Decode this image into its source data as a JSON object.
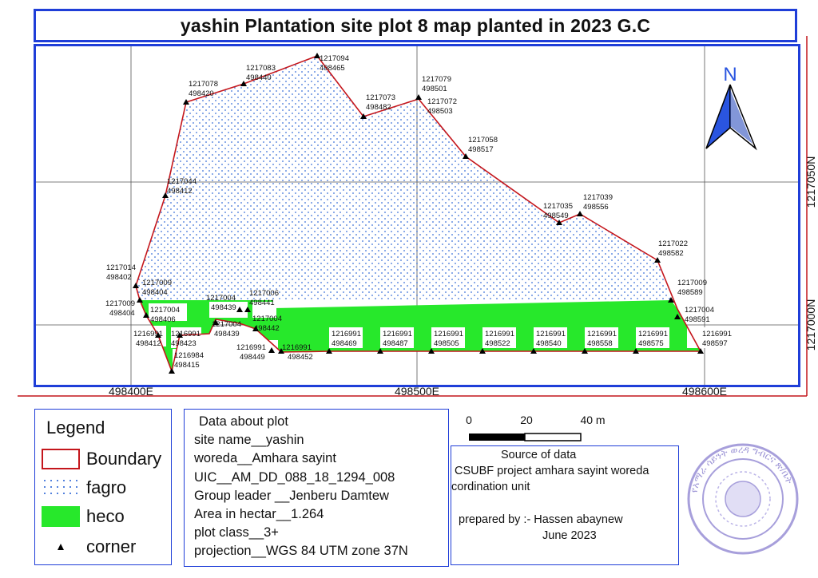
{
  "title": "yashin Plantation site plot 8 map planted in 2023 G.C",
  "colors": {
    "frame": "#1f3ed8",
    "boundary": "#c4161c",
    "fagro_dots": "#3a6fd8",
    "heco": "#27e82b",
    "north_arrow": "#2a55e0"
  },
  "map": {
    "north_label": "N",
    "grid_x_labels": [
      "498400E",
      "498500E",
      "498600E"
    ],
    "grid_y_labels": [
      "1217050N",
      "1217000N"
    ],
    "corners": [
      {
        "n": "1217094",
        "e": "498465"
      },
      {
        "n": "1217083",
        "e": "498440"
      },
      {
        "n": "1217078",
        "e": "498420"
      },
      {
        "n": "1217073",
        "e": "498482"
      },
      {
        "n": "1217079",
        "e": "498501"
      },
      {
        "n": "1217072",
        "e": "498503"
      },
      {
        "n": "1217058",
        "e": "498517"
      },
      {
        "n": "1217044",
        "e": "498412"
      },
      {
        "n": "1217035",
        "e": "498549"
      },
      {
        "n": "1217039",
        "e": "498556"
      },
      {
        "n": "1217022",
        "e": "498582"
      },
      {
        "n": "1217014",
        "e": "498402"
      },
      {
        "n": "1217009",
        "e": "498404"
      },
      {
        "n": "1217009",
        "e": "498589"
      },
      {
        "n": "1217009",
        "e": "498404"
      },
      {
        "n": "1217004",
        "e": "498406"
      },
      {
        "n": "1217004",
        "e": "498439"
      },
      {
        "n": "1217006",
        "e": "498441"
      },
      {
        "n": "1217004",
        "e": "498591"
      },
      {
        "n": "1217004",
        "e": "498439"
      },
      {
        "n": "1217004",
        "e": "498442"
      },
      {
        "n": "1216991",
        "e": "498412"
      },
      {
        "n": "1216991",
        "e": "498423"
      },
      {
        "n": "1216984",
        "e": "498415"
      },
      {
        "n": "1216991",
        "e": "498449"
      },
      {
        "n": "1216991",
        "e": "498452"
      },
      {
        "n": "1216991",
        "e": "498469"
      },
      {
        "n": "1216991",
        "e": "498487"
      },
      {
        "n": "1216991",
        "e": "498505"
      },
      {
        "n": "1216991",
        "e": "498522"
      },
      {
        "n": "1216991",
        "e": "498540"
      },
      {
        "n": "1216991",
        "e": "498558"
      },
      {
        "n": "1216991",
        "e": "498575"
      },
      {
        "n": "1216991",
        "e": "498597"
      }
    ]
  },
  "scale_bar": {
    "labels": [
      "0",
      "20",
      "40 m"
    ]
  },
  "legend": {
    "title": "Legend",
    "items": [
      {
        "label": "Boundary",
        "icon": "boundary-swatch"
      },
      {
        "label": "fagro",
        "icon": "dotted-swatch"
      },
      {
        "label": "heco",
        "icon": "green-swatch"
      },
      {
        "label": "corner",
        "icon": "triangle-icon"
      }
    ]
  },
  "plot_info": {
    "heading": "Data about plot",
    "lines": [
      "site name__yashin",
      "woreda__Amhara sayint",
      "UIC__AM_DD_088_18_1294_008",
      "Group leader __Jenberu Damtew",
      "Area in hectar__1.264",
      "plot class__3+",
      "projection__WGS 84 UTM zone 37N"
    ]
  },
  "source": {
    "heading": "Source of data",
    "line1": "CSUBF project amhara sayint woreda",
    "line2": "cordination unit",
    "prepared": "prepared by :- Hassen abaynew",
    "date": "June 2023"
  },
  "stamp": {
    "text": "የአማራ ሳይንት ወረዳ ግብርና ጽ/ቤት"
  }
}
